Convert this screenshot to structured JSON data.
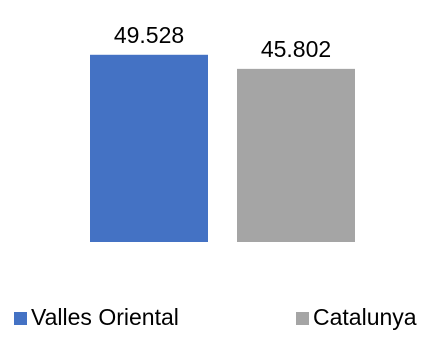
{
  "chart_data": {
    "type": "bar",
    "categories": [
      "Valles Oriental",
      "Catalunya"
    ],
    "values": [
      49.528,
      45.802
    ],
    "value_labels": [
      "49.528",
      "45.802"
    ],
    "colors": [
      "#4472C4",
      "#A5A5A5"
    ],
    "legend": {
      "position": "bottom",
      "entries": [
        "Valles Oriental",
        "Catalunya"
      ]
    },
    "title": "",
    "xlabel": "",
    "ylabel": "",
    "grid": false
  }
}
